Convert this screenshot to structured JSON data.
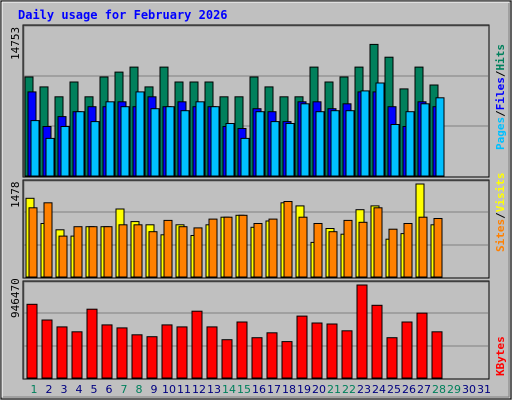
{
  "title": "Daily usage for February 2026",
  "colors": {
    "hits": "#00805c",
    "files": "#0000ff",
    "pages": "#00c0ff",
    "visits": "#ffff00",
    "sites": "#ff8000",
    "kbytes": "#ff0000",
    "panel": "#c0c0c0",
    "title": "#0000ff",
    "day_label_weekday": "#000080",
    "day_label_weekend": "#00805c"
  },
  "chart_data": [
    {
      "type": "bar",
      "panel": "hits-files-pages",
      "ymax_label": "14753",
      "ymax": 14753,
      "legend": [
        "Hits",
        "Files",
        "Pages"
      ],
      "categories": [
        "1",
        "2",
        "3",
        "4",
        "5",
        "6",
        "7",
        "8",
        "9",
        "10",
        "11",
        "12",
        "13",
        "14",
        "15",
        "16",
        "17",
        "18",
        "19",
        "20",
        "21",
        "22",
        "23",
        "24",
        "25",
        "26",
        "27",
        "28"
      ],
      "series": [
        {
          "name": "Hits",
          "values": [
            10000,
            9000,
            8000,
            9500,
            8000,
            10000,
            10500,
            11000,
            9000,
            11000,
            9500,
            9500,
            9500,
            8000,
            8000,
            10000,
            9000,
            8000,
            8000,
            11000,
            9500,
            10000,
            11000,
            13300,
            12000,
            8800,
            11000,
            9200
          ]
        },
        {
          "name": "Files",
          "values": [
            8500,
            5000,
            6000,
            6500,
            7000,
            7000,
            7500,
            7000,
            8000,
            7000,
            7500,
            7000,
            7000,
            5000,
            4800,
            6800,
            6500,
            5500,
            7500,
            7500,
            6800,
            7300,
            8500,
            8500,
            7000,
            5000,
            7500,
            7000
          ]
        },
        {
          "name": "Pages",
          "values": [
            5600,
            3800,
            5000,
            6500,
            5500,
            7500,
            7000,
            8500,
            6800,
            7000,
            6600,
            7500,
            7000,
            5300,
            3800,
            6500,
            5500,
            5300,
            7300,
            6500,
            6600,
            6600,
            8600,
            9400,
            5200,
            6500,
            7300,
            7900
          ]
        }
      ]
    },
    {
      "type": "bar",
      "panel": "visits-sites",
      "ymax_label": "1478",
      "ymax": 1478,
      "legend": [
        "Visits",
        "Sites"
      ],
      "categories": [
        "1",
        "2",
        "3",
        "4",
        "5",
        "6",
        "7",
        "8",
        "9",
        "10",
        "11",
        "12",
        "13",
        "14",
        "15",
        "16",
        "17",
        "18",
        "19",
        "20",
        "21",
        "22",
        "23",
        "24",
        "25",
        "26",
        "27",
        "28"
      ],
      "series": [
        {
          "name": "Visits",
          "values": [
            1250,
            850,
            750,
            650,
            800,
            800,
            1080,
            880,
            830,
            670,
            830,
            660,
            830,
            950,
            980,
            790,
            890,
            1180,
            1130,
            550,
            770,
            680,
            1070,
            1130,
            600,
            690,
            1478,
            830
          ]
        },
        {
          "name": "Sites",
          "values": [
            1100,
            1180,
            650,
            800,
            800,
            800,
            830,
            830,
            720,
            900,
            800,
            780,
            920,
            950,
            980,
            850,
            920,
            1200,
            950,
            850,
            720,
            900,
            870,
            1100,
            760,
            850,
            950,
            930
          ]
        }
      ]
    },
    {
      "type": "bar",
      "panel": "kbytes",
      "ymax_label": "946470",
      "ymax": 946470,
      "legend": [
        "KBytes"
      ],
      "categories": [
        "1",
        "2",
        "3",
        "4",
        "5",
        "6",
        "7",
        "8",
        "9",
        "10",
        "11",
        "12",
        "13",
        "14",
        "15",
        "16",
        "17",
        "18",
        "19",
        "20",
        "21",
        "22",
        "23",
        "24",
        "25",
        "26",
        "27",
        "28"
      ],
      "series": [
        {
          "name": "KBytes",
          "values": [
            750000,
            590000,
            520000,
            470000,
            700000,
            540000,
            510000,
            440000,
            420000,
            540000,
            520000,
            680000,
            520000,
            390000,
            570000,
            410000,
            460000,
            370000,
            630000,
            560000,
            550000,
            480000,
            946470,
            740000,
            410000,
            570000,
            660000,
            470000
          ]
        }
      ]
    }
  ],
  "x_labels": [
    {
      "t": "1",
      "weekend": true
    },
    {
      "t": "2",
      "weekend": false
    },
    {
      "t": "3",
      "weekend": false
    },
    {
      "t": "4",
      "weekend": false
    },
    {
      "t": "5",
      "weekend": false
    },
    {
      "t": "6",
      "weekend": false
    },
    {
      "t": "7",
      "weekend": true
    },
    {
      "t": "8",
      "weekend": true
    },
    {
      "t": "9",
      "weekend": false
    },
    {
      "t": "10",
      "weekend": false
    },
    {
      "t": "11",
      "weekend": false
    },
    {
      "t": "12",
      "weekend": false
    },
    {
      "t": "13",
      "weekend": false
    },
    {
      "t": "14",
      "weekend": true
    },
    {
      "t": "15",
      "weekend": true
    },
    {
      "t": "16",
      "weekend": false
    },
    {
      "t": "17",
      "weekend": false
    },
    {
      "t": "18",
      "weekend": false
    },
    {
      "t": "19",
      "weekend": false
    },
    {
      "t": "20",
      "weekend": false
    },
    {
      "t": "21",
      "weekend": true
    },
    {
      "t": "22",
      "weekend": true
    },
    {
      "t": "23",
      "weekend": false
    },
    {
      "t": "24",
      "weekend": false
    },
    {
      "t": "25",
      "weekend": false
    },
    {
      "t": "26",
      "weekend": false
    },
    {
      "t": "27",
      "weekend": false
    },
    {
      "t": "28",
      "weekend": true
    },
    {
      "t": "29",
      "weekend": true
    },
    {
      "t": "30",
      "weekend": false
    },
    {
      "t": "31",
      "weekend": false
    }
  ]
}
